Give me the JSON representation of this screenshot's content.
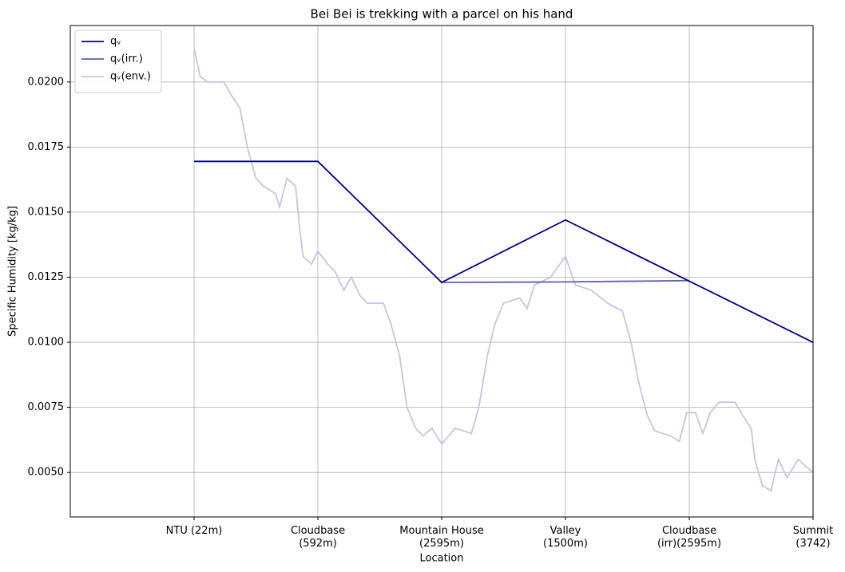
{
  "chart_data": {
    "type": "line",
    "title": "Bei Bei is trekking with a parcel on his hand",
    "x_label": "Location",
    "y_label": "Specific Humidity [kg/kg]",
    "xlim": [
      -1,
      5
    ],
    "xticks": [
      {
        "value": 0,
        "label": "NTU (22m)"
      },
      {
        "value": 1,
        "label": "Cloudbase\n(592m)"
      },
      {
        "value": 2,
        "label": "Mountain House\n(2595m)"
      },
      {
        "value": 3,
        "label": "Valley\n(1500m)"
      },
      {
        "value": 4,
        "label": "Cloudbase\n(irr)(2595m)"
      },
      {
        "value": 5,
        "label": "Summit\n(3742)"
      }
    ],
    "ylim": [
      0.00329,
      0.02217
    ],
    "yticks": [
      {
        "value": 0.005,
        "label": "0.0050"
      },
      {
        "value": 0.0075,
        "label": "0.0075"
      },
      {
        "value": 0.01,
        "label": "0.0100"
      },
      {
        "value": 0.0125,
        "label": "0.0125"
      },
      {
        "value": 0.015,
        "label": "0.0150"
      },
      {
        "value": 0.0175,
        "label": "0.0175"
      },
      {
        "value": 0.02,
        "label": "0.0200"
      }
    ],
    "grid": true,
    "legend": "upper left",
    "series": [
      {
        "name": "qᵥ",
        "color": "#00008b",
        "x": [
          0,
          1,
          2,
          3,
          4,
          5
        ],
        "values": [
          0.01695,
          0.01695,
          0.0123,
          0.0147,
          0.01235,
          0.01
        ]
      },
      {
        "name": "qᵥ(irr.)",
        "color": "#5a5fb6",
        "x": [
          2,
          3,
          4
        ],
        "values": [
          0.0123,
          0.01232,
          0.01237
        ]
      },
      {
        "name": "qᵥ(env.)",
        "color": "#c6c6e4",
        "x": [
          0,
          0.05,
          0.11,
          0.24,
          0.3,
          0.37,
          0.43,
          0.5,
          0.56,
          0.66,
          0.69,
          0.75,
          0.82,
          0.85,
          0.88,
          0.95,
          1,
          1.08,
          1.14,
          1.21,
          1.27,
          1.34,
          1.4,
          1.53,
          1.59,
          1.66,
          1.72,
          1.79,
          1.85,
          1.92,
          2,
          2.11,
          2.24,
          2.3,
          2.37,
          2.43,
          2.5,
          2.63,
          2.69,
          2.75,
          2.88,
          3,
          3.08,
          3.21,
          3.34,
          3.46,
          3.53,
          3.59,
          3.66,
          3.72,
          3.85,
          3.92,
          3.98,
          4.05,
          4.11,
          4.17,
          4.24,
          4.37,
          4.43,
          4.5,
          4.53,
          4.59,
          4.66,
          4.72,
          4.79,
          4.88,
          4.95,
          5
        ],
        "values": [
          0.0213,
          0.0202,
          0.02,
          0.02,
          0.0195,
          0.019,
          0.0175,
          0.0163,
          0.016,
          0.0157,
          0.0152,
          0.0163,
          0.016,
          0.0145,
          0.0133,
          0.013,
          0.0135,
          0.013,
          0.0127,
          0.012,
          0.0125,
          0.0118,
          0.0115,
          0.0115,
          0.0107,
          0.0095,
          0.0075,
          0.0067,
          0.0064,
          0.0067,
          0.0061,
          0.0067,
          0.0065,
          0.0075,
          0.0095,
          0.0107,
          0.0115,
          0.0117,
          0.0113,
          0.0122,
          0.0125,
          0.0133,
          0.0122,
          0.012,
          0.0115,
          0.0112,
          0.01,
          0.0085,
          0.0072,
          0.0066,
          0.0064,
          0.0062,
          0.0073,
          0.0073,
          0.0065,
          0.0073,
          0.0077,
          0.0077,
          0.0072,
          0.0067,
          0.0055,
          0.0045,
          0.0043,
          0.0055,
          0.0048,
          0.0055,
          0.0052,
          0.005
        ]
      }
    ]
  }
}
